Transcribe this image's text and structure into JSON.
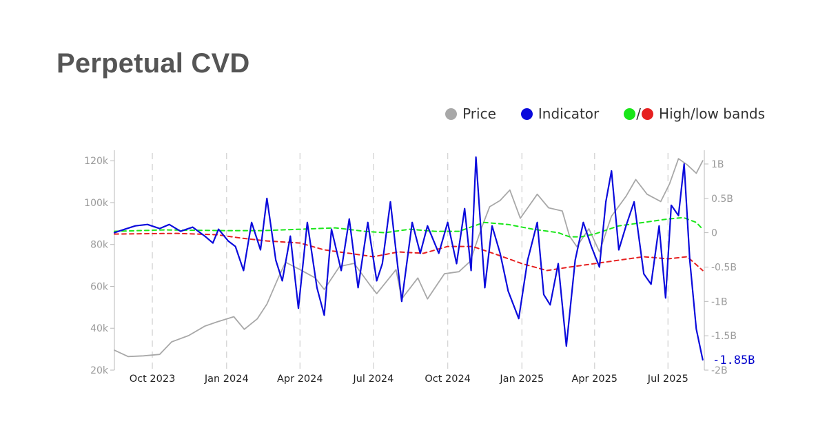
{
  "title": "Perpetual CVD",
  "legend": {
    "price_label": "Price",
    "indicator_label": "Indicator",
    "bands_label": "High/low bands",
    "separator": "/"
  },
  "colors": {
    "price": "#a8a8a8",
    "indicator": "#0a0adc",
    "high_band": "#19e619",
    "low_band": "#e62020",
    "title": "#555555"
  },
  "chart_data": {
    "type": "line",
    "x_range": [
      "2023-08-15",
      "2025-08-15"
    ],
    "x_ticks": [
      {
        "date": "2023-10-01",
        "label": "Oct 2023"
      },
      {
        "date": "2024-01-01",
        "label": "Jan 2024"
      },
      {
        "date": "2024-04-01",
        "label": "Apr 2024"
      },
      {
        "date": "2024-07-01",
        "label": "Jul 2024"
      },
      {
        "date": "2024-10-01",
        "label": "Oct 2024"
      },
      {
        "date": "2025-01-01",
        "label": "Jan 2025"
      },
      {
        "date": "2025-04-01",
        "label": "Apr 2025"
      },
      {
        "date": "2025-07-01",
        "label": "Jul 2025"
      }
    ],
    "grid_x": true,
    "left_axis": {
      "range": [
        20000,
        125000
      ],
      "ticks": [
        {
          "value": 20000,
          "label": "20k"
        },
        {
          "value": 40000,
          "label": "40k"
        },
        {
          "value": 60000,
          "label": "60k"
        },
        {
          "value": 80000,
          "label": "80k"
        },
        {
          "value": 100000,
          "label": "100k"
        },
        {
          "value": 120000,
          "label": "120k"
        }
      ]
    },
    "right_axis": {
      "range": [
        -2.0,
        1.2
      ],
      "ticks": [
        {
          "value": 1.0,
          "label": "1B"
        },
        {
          "value": 0.5,
          "label": "0.5B"
        },
        {
          "value": 0,
          "label": "0"
        },
        {
          "value": -0.5,
          "label": "-0.5B"
        },
        {
          "value": -1.0,
          "label": "-1B"
        },
        {
          "value": -1.5,
          "label": "-1.5B"
        },
        {
          "value": -2.0,
          "label": "-2B"
        }
      ]
    },
    "last_value_label": "-1.85B",
    "series": [
      {
        "name": "Price",
        "axis": "left",
        "style": "solid",
        "points": [
          [
            "2023-08-15",
            29500
          ],
          [
            "2023-09-01",
            26500
          ],
          [
            "2023-09-20",
            26800
          ],
          [
            "2023-10-10",
            27500
          ],
          [
            "2023-10-25",
            33500
          ],
          [
            "2023-11-15",
            36500
          ],
          [
            "2023-12-05",
            41000
          ],
          [
            "2023-12-20",
            43000
          ],
          [
            "2024-01-10",
            45500
          ],
          [
            "2024-01-23",
            39500
          ],
          [
            "2024-02-08",
            44500
          ],
          [
            "2024-02-20",
            51500
          ],
          [
            "2024-03-05",
            64000
          ],
          [
            "2024-03-14",
            71500
          ],
          [
            "2024-04-01",
            68000
          ],
          [
            "2024-04-20",
            64000
          ],
          [
            "2024-05-01",
            58500
          ],
          [
            "2024-05-20",
            69500
          ],
          [
            "2024-06-07",
            71000
          ],
          [
            "2024-06-25",
            61500
          ],
          [
            "2024-07-05",
            56500
          ],
          [
            "2024-07-29",
            68000
          ],
          [
            "2024-08-05",
            54000
          ],
          [
            "2024-08-25",
            64000
          ],
          [
            "2024-09-06",
            54000
          ],
          [
            "2024-09-27",
            66000
          ],
          [
            "2024-10-15",
            67000
          ],
          [
            "2024-10-29",
            72000
          ],
          [
            "2024-11-12",
            88000
          ],
          [
            "2024-11-22",
            98000
          ],
          [
            "2024-12-05",
            101000
          ],
          [
            "2024-12-17",
            106000
          ],
          [
            "2024-12-30",
            92500
          ],
          [
            "2025-01-20",
            104000
          ],
          [
            "2025-02-03",
            97500
          ],
          [
            "2025-02-20",
            96000
          ],
          [
            "2025-03-01",
            84000
          ],
          [
            "2025-03-10",
            79000
          ],
          [
            "2025-03-25",
            87500
          ],
          [
            "2025-04-07",
            76500
          ],
          [
            "2025-04-22",
            93500
          ],
          [
            "2025-05-10",
            103000
          ],
          [
            "2025-05-22",
            111000
          ],
          [
            "2025-06-05",
            104000
          ],
          [
            "2025-06-22",
            100500
          ],
          [
            "2025-07-03",
            109000
          ],
          [
            "2025-07-14",
            121000
          ],
          [
            "2025-07-25",
            118000
          ],
          [
            "2025-08-05",
            114000
          ],
          [
            "2025-08-13",
            120000
          ]
        ]
      },
      {
        "name": "Indicator",
        "axis": "right",
        "style": "solid",
        "points": [
          [
            "2023-08-15",
            0.0
          ],
          [
            "2023-08-28",
            0.05
          ],
          [
            "2023-09-10",
            0.1
          ],
          [
            "2023-09-25",
            0.12
          ],
          [
            "2023-10-10",
            0.06
          ],
          [
            "2023-10-22",
            0.12
          ],
          [
            "2023-11-05",
            0.02
          ],
          [
            "2023-11-20",
            0.08
          ],
          [
            "2023-12-05",
            -0.05
          ],
          [
            "2023-12-15",
            -0.15
          ],
          [
            "2023-12-22",
            0.05
          ],
          [
            "2024-01-03",
            -0.12
          ],
          [
            "2024-01-12",
            -0.2
          ],
          [
            "2024-01-22",
            -0.55
          ],
          [
            "2024-02-01",
            0.15
          ],
          [
            "2024-02-12",
            -0.25
          ],
          [
            "2024-02-20",
            0.5
          ],
          [
            "2024-03-02",
            -0.4
          ],
          [
            "2024-03-10",
            -0.7
          ],
          [
            "2024-03-20",
            -0.05
          ],
          [
            "2024-03-30",
            -1.1
          ],
          [
            "2024-04-10",
            0.15
          ],
          [
            "2024-04-22",
            -0.8
          ],
          [
            "2024-05-01",
            -1.2
          ],
          [
            "2024-05-10",
            0.05
          ],
          [
            "2024-05-22",
            -0.55
          ],
          [
            "2024-06-01",
            0.2
          ],
          [
            "2024-06-12",
            -0.8
          ],
          [
            "2024-06-24",
            0.15
          ],
          [
            "2024-07-05",
            -0.7
          ],
          [
            "2024-07-12",
            -0.45
          ],
          [
            "2024-07-22",
            0.45
          ],
          [
            "2024-08-05",
            -1.0
          ],
          [
            "2024-08-18",
            0.15
          ],
          [
            "2024-08-28",
            -0.3
          ],
          [
            "2024-09-06",
            0.1
          ],
          [
            "2024-09-20",
            -0.3
          ],
          [
            "2024-10-01",
            0.15
          ],
          [
            "2024-10-12",
            -0.45
          ],
          [
            "2024-10-22",
            0.35
          ],
          [
            "2024-10-30",
            -0.55
          ],
          [
            "2024-11-05",
            1.1
          ],
          [
            "2024-11-16",
            -0.8
          ],
          [
            "2024-11-25",
            0.1
          ],
          [
            "2024-12-05",
            -0.3
          ],
          [
            "2024-12-15",
            -0.85
          ],
          [
            "2024-12-28",
            -1.25
          ],
          [
            "2025-01-08",
            -0.4
          ],
          [
            "2025-01-20",
            0.15
          ],
          [
            "2025-01-28",
            -0.9
          ],
          [
            "2025-02-05",
            -1.05
          ],
          [
            "2025-02-15",
            -0.45
          ],
          [
            "2025-02-25",
            -1.65
          ],
          [
            "2025-03-08",
            -0.4
          ],
          [
            "2025-03-18",
            0.15
          ],
          [
            "2025-03-28",
            -0.2
          ],
          [
            "2025-04-07",
            -0.5
          ],
          [
            "2025-04-15",
            0.45
          ],
          [
            "2025-04-22",
            0.9
          ],
          [
            "2025-05-01",
            -0.25
          ],
          [
            "2025-05-10",
            0.1
          ],
          [
            "2025-05-20",
            0.45
          ],
          [
            "2025-06-01",
            -0.6
          ],
          [
            "2025-06-10",
            -0.75
          ],
          [
            "2025-06-20",
            0.1
          ],
          [
            "2025-06-28",
            -0.95
          ],
          [
            "2025-07-05",
            0.4
          ],
          [
            "2025-07-14",
            0.25
          ],
          [
            "2025-07-21",
            1.0
          ],
          [
            "2025-07-28",
            -0.4
          ],
          [
            "2025-08-05",
            -1.4
          ],
          [
            "2025-08-13",
            -1.85
          ]
        ]
      },
      {
        "name": "High band",
        "axis": "right",
        "style": "dashed",
        "points": [
          [
            "2023-08-15",
            0.02
          ],
          [
            "2023-10-15",
            0.04
          ],
          [
            "2024-01-01",
            0.03
          ],
          [
            "2024-02-15",
            0.03
          ],
          [
            "2024-04-01",
            0.05
          ],
          [
            "2024-05-15",
            0.07
          ],
          [
            "2024-06-20",
            0.02
          ],
          [
            "2024-07-15",
            0.0
          ],
          [
            "2024-08-15",
            0.05
          ],
          [
            "2024-09-15",
            0.02
          ],
          [
            "2024-10-15",
            0.02
          ],
          [
            "2024-11-15",
            0.15
          ],
          [
            "2024-12-15",
            0.12
          ],
          [
            "2025-01-15",
            0.05
          ],
          [
            "2025-02-15",
            0.0
          ],
          [
            "2025-03-01",
            -0.06
          ],
          [
            "2025-03-15",
            -0.06
          ],
          [
            "2025-04-01",
            -0.02
          ],
          [
            "2025-05-01",
            0.1
          ],
          [
            "2025-06-01",
            0.15
          ],
          [
            "2025-07-01",
            0.2
          ],
          [
            "2025-07-20",
            0.22
          ],
          [
            "2025-08-05",
            0.15
          ],
          [
            "2025-08-13",
            0.05
          ]
        ]
      },
      {
        "name": "Low band",
        "axis": "right",
        "style": "dashed",
        "points": [
          [
            "2023-08-15",
            -0.02
          ],
          [
            "2023-11-01",
            -0.01
          ],
          [
            "2023-12-20",
            -0.03
          ],
          [
            "2024-01-20",
            -0.08
          ],
          [
            "2024-02-20",
            -0.12
          ],
          [
            "2024-04-01",
            -0.15
          ],
          [
            "2024-05-01",
            -0.25
          ],
          [
            "2024-06-01",
            -0.3
          ],
          [
            "2024-07-01",
            -0.35
          ],
          [
            "2024-08-01",
            -0.28
          ],
          [
            "2024-09-01",
            -0.3
          ],
          [
            "2024-10-01",
            -0.2
          ],
          [
            "2024-11-01",
            -0.2
          ],
          [
            "2024-12-01",
            -0.32
          ],
          [
            "2025-01-01",
            -0.45
          ],
          [
            "2025-02-01",
            -0.55
          ],
          [
            "2025-03-01",
            -0.5
          ],
          [
            "2025-04-01",
            -0.45
          ],
          [
            "2025-05-01",
            -0.4
          ],
          [
            "2025-06-01",
            -0.35
          ],
          [
            "2025-07-01",
            -0.38
          ],
          [
            "2025-07-25",
            -0.35
          ],
          [
            "2025-08-13",
            -0.55
          ]
        ]
      }
    ]
  }
}
